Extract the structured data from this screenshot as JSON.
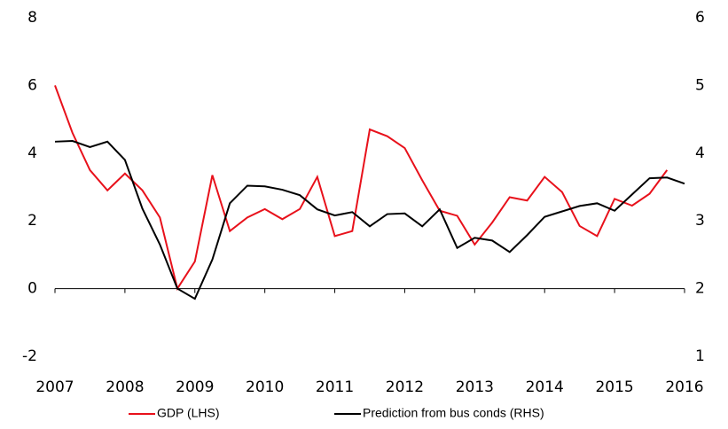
{
  "chart_data": {
    "type": "line",
    "x": [
      2007,
      2007.25,
      2007.5,
      2007.75,
      2008,
      2008.25,
      2008.5,
      2008.75,
      2009,
      2009.25,
      2009.5,
      2009.75,
      2010,
      2010.25,
      2010.5,
      2010.75,
      2011,
      2011.25,
      2011.5,
      2011.75,
      2012,
      2012.25,
      2012.5,
      2012.75,
      2013,
      2013.25,
      2013.5,
      2013.75,
      2014,
      2014.25,
      2014.5,
      2014.75,
      2015,
      2015.25,
      2015.5,
      2015.75,
      2016
    ],
    "series": [
      {
        "name": "GDP (LHS)",
        "color": "#e8111b",
        "values": [
          6.0,
          4.6,
          3.5,
          2.9,
          3.4,
          2.9,
          2.1,
          0.0,
          0.8,
          3.35,
          1.7,
          2.1,
          2.35,
          2.05,
          2.35,
          3.3,
          1.55,
          1.7,
          4.7,
          4.5,
          4.15,
          3.2,
          2.3,
          2.15,
          1.3,
          1.95,
          2.7,
          2.6,
          3.3,
          2.85,
          1.85,
          1.55,
          2.65,
          2.45,
          2.8,
          3.5,
          null
        ]
      },
      {
        "name": "Prediction from bus conds (RHS)",
        "color": "#000000",
        "axis": "y2",
        "values": [
          4.17,
          4.18,
          4.09,
          4.17,
          3.9,
          3.18,
          2.65,
          2.0,
          1.85,
          2.43,
          3.26,
          3.52,
          3.51,
          3.46,
          3.38,
          3.17,
          3.08,
          3.13,
          2.92,
          3.1,
          3.11,
          2.92,
          3.17,
          2.6,
          2.75,
          2.71,
          2.54,
          2.79,
          3.06,
          3.14,
          3.22,
          3.26,
          3.15,
          3.39,
          3.63,
          3.64,
          3.55
        ]
      }
    ],
    "xlim": [
      2007,
      2016
    ],
    "xticks": [
      2007,
      2008,
      2009,
      2010,
      2011,
      2012,
      2013,
      2014,
      2015,
      2016
    ],
    "ylim": [
      -2,
      8
    ],
    "yticks": [
      -2,
      0,
      2,
      4,
      6,
      8
    ],
    "y2lim": [
      1,
      6
    ],
    "y2ticks": [
      1,
      2,
      3,
      4,
      5,
      6
    ],
    "grid": false,
    "legend": "bottom"
  }
}
